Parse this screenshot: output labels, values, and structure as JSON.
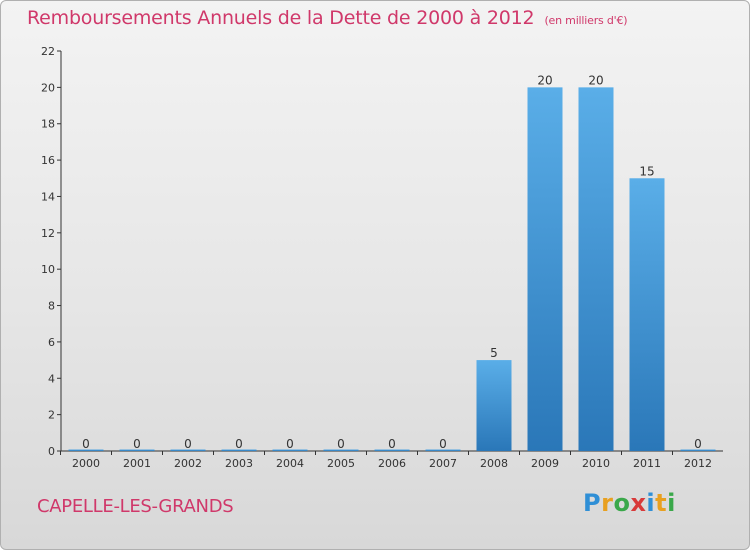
{
  "page": {
    "title": "Remboursements Annuels de la Dette de 2000 à 2012",
    "unit": "(en milliers d'€)",
    "city": "CAPELLE-LES-GRANDS",
    "brand": "Proxiti"
  },
  "colors": {
    "title": "#d0386a",
    "bar_top": "#5aaee8",
    "bar_bottom": "#2a77b8",
    "axis": "#333333"
  },
  "chart_data": {
    "type": "bar",
    "title": "Remboursements Annuels de la Dette de 2000 à 2012",
    "subtitle": "(en milliers d'€)",
    "categories": [
      "2000",
      "2001",
      "2002",
      "2003",
      "2004",
      "2005",
      "2006",
      "2007",
      "2008",
      "2009",
      "2010",
      "2011",
      "2012"
    ],
    "values": [
      0,
      0,
      0,
      0,
      0,
      0,
      0,
      0,
      5,
      20,
      20,
      15,
      0
    ],
    "ylim": [
      0,
      22
    ],
    "yticks": [
      0,
      2,
      4,
      6,
      8,
      10,
      12,
      14,
      16,
      18,
      20,
      22
    ],
    "grid": false,
    "legend": "none"
  }
}
